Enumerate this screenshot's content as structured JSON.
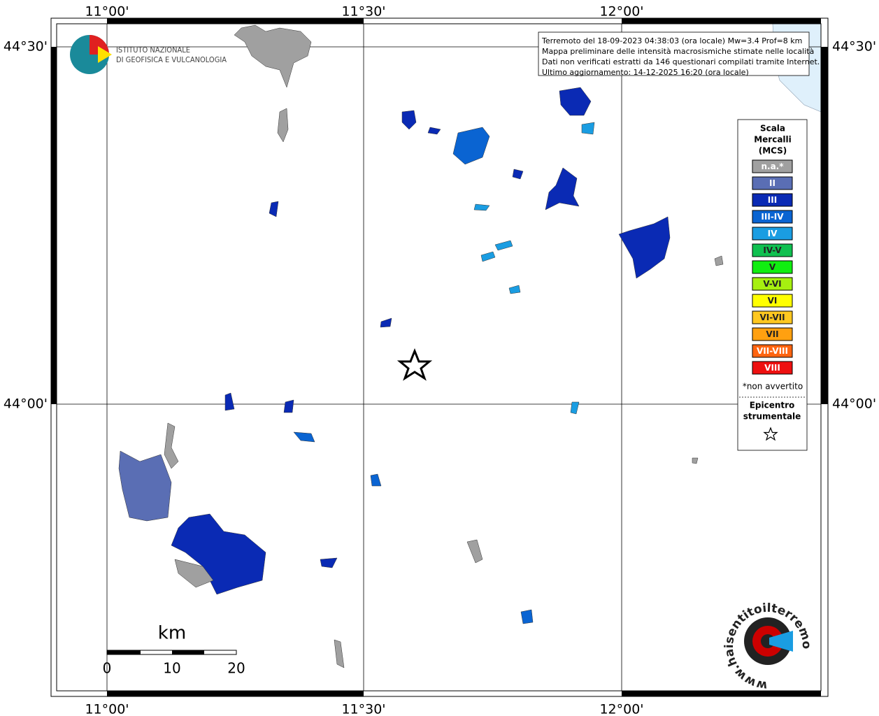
{
  "map": {
    "lon_labels": [
      "11°00'",
      "11°30'",
      "12°00'"
    ],
    "lat_labels": [
      "44°30'",
      "44°00'"
    ],
    "info": [
      "Terremoto del 18-09-2023 04:38:03 (ora locale) Mw=3.4 Prof=8 km",
      "Mappa preliminare delle intensità macrosismiche stimate nelle località",
      "Dati non verificati estratti da 146 questionari compilati tramite Internet.",
      "Ultimo aggiornamento: 14-12-2025 16:20 (ora locale)"
    ],
    "logo": [
      "ISTITUTO NAZIONALE",
      "DI GEOFISICA E VULCANOLOGIA"
    ],
    "site": "www.haisentitoilterremoto.it",
    "legend": {
      "title": [
        "Scala",
        "Mercalli",
        "(MCS)"
      ],
      "items": [
        {
          "label": "n.a.*",
          "color": "#a0a0a0"
        },
        {
          "label": "II",
          "color": "#5a6eb4"
        },
        {
          "label": "III",
          "color": "#0a2ab4"
        },
        {
          "label": "III-IV",
          "color": "#0a64d2"
        },
        {
          "label": "IV",
          "color": "#1a9de2"
        },
        {
          "label": "IV-V",
          "color": "#10c050"
        },
        {
          "label": "V",
          "color": "#10ee10"
        },
        {
          "label": "V-VI",
          "color": "#a6f010"
        },
        {
          "label": "VI",
          "color": "#ffff00"
        },
        {
          "label": "VI-VII",
          "color": "#ffc820"
        },
        {
          "label": "VII",
          "color": "#ffa010"
        },
        {
          "label": "VII-VIII",
          "color": "#ff6410"
        },
        {
          "label": "VIII",
          "color": "#ee1010"
        }
      ],
      "note": "*non avvertito",
      "epicenter": [
        "Epicentro",
        "strumentale"
      ]
    },
    "scale": {
      "unit": "km",
      "labels": [
        "0",
        "10",
        "20"
      ]
    }
  }
}
